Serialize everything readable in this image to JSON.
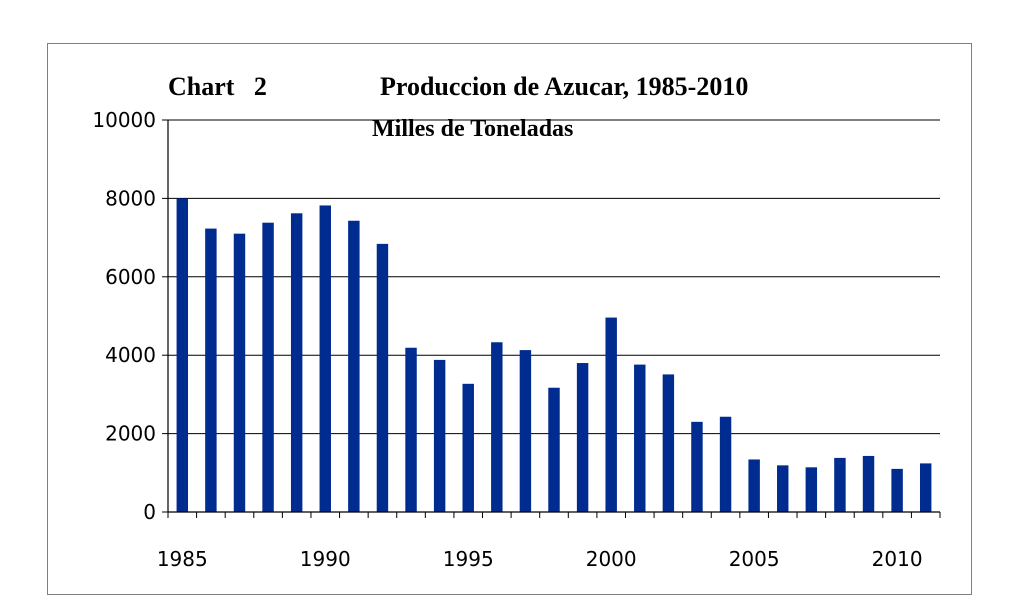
{
  "chart_data": {
    "type": "bar",
    "chart_label": "Chart   2",
    "title": "Produccion de Azucar, 1985-2010",
    "subtitle": "Milles de Toneladas",
    "xlabel": "",
    "ylabel": "",
    "x": [
      1985,
      1986,
      1987,
      1988,
      1989,
      1990,
      1991,
      1992,
      1993,
      1994,
      1995,
      1996,
      1997,
      1998,
      1999,
      2000,
      2001,
      2002,
      2003,
      2004,
      2005,
      2006,
      2007,
      2008,
      2009,
      2010,
      2011
    ],
    "values": [
      8000,
      7230,
      7100,
      7380,
      7620,
      7820,
      7430,
      6840,
      4190,
      3880,
      3270,
      4330,
      4130,
      3170,
      3800,
      4960,
      3760,
      3510,
      2300,
      2430,
      1340,
      1190,
      1140,
      1380,
      1430,
      1100,
      1240
    ],
    "ylim": [
      0,
      10000
    ],
    "yticks": [
      0,
      2000,
      4000,
      6000,
      8000,
      10000
    ],
    "xticks": [
      1985,
      1990,
      1995,
      2000,
      2005,
      2010
    ],
    "grid": true,
    "legend": "none",
    "bar_color": "#002b8f"
  }
}
